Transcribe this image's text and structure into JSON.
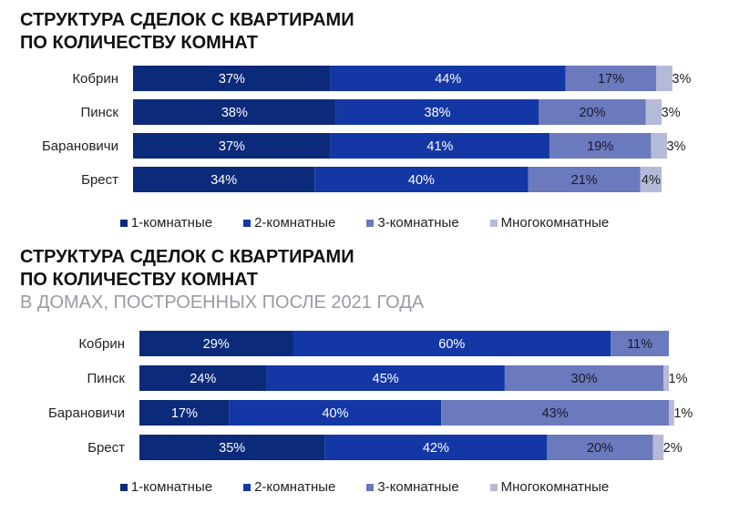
{
  "chart_data": [
    {
      "type": "bar",
      "orientation": "horizontal",
      "stacked": true,
      "title": [
        "СТРУКТУРА СДЕЛОК С КВАРТИРАМИ",
        "ПО КОЛИЧЕСТВУ КОМНАТ"
      ],
      "subtitle": "",
      "categories": [
        "Кобрин",
        "Пинск",
        "Барановичи",
        "Брест"
      ],
      "series": [
        {
          "name": "1-комнатные",
          "values": [
            37,
            38,
            37,
            34
          ],
          "color": "#0b2a7a"
        },
        {
          "name": "2-комнатные",
          "values": [
            44,
            38,
            41,
            40
          ],
          "color": "#1437a6"
        },
        {
          "name": "3-комнатные",
          "values": [
            17,
            20,
            19,
            21
          ],
          "color": "#6b79bd"
        },
        {
          "name": "Многокомнатные",
          "values": [
            3,
            3,
            3,
            4
          ],
          "color": "#b5bad8"
        }
      ],
      "xlim": [
        0,
        100
      ],
      "legend_position": "bottom"
    },
    {
      "type": "bar",
      "orientation": "horizontal",
      "stacked": true,
      "title": [
        "СТРУКТУРА СДЕЛОК С КВАРТИРАМИ",
        "ПО КОЛИЧЕСТВУ КОМНАТ"
      ],
      "subtitle": "В ДОМАХ, ПОСТРОЕННЫХ ПОСЛЕ 2021 ГОДА",
      "categories": [
        "Кобрин",
        "Пинск",
        "Барановичи",
        "Брест"
      ],
      "series": [
        {
          "name": "1-комнатные",
          "values": [
            29,
            24,
            17,
            35
          ],
          "color": "#0b2a7a"
        },
        {
          "name": "2-комнатные",
          "values": [
            60,
            45,
            40,
            42
          ],
          "color": "#1437a6"
        },
        {
          "name": "3-комнатные",
          "values": [
            11,
            30,
            43,
            20
          ],
          "color": "#6b79bd"
        },
        {
          "name": "Многокомнатные",
          "values": [
            0,
            1,
            1,
            2
          ],
          "color": "#b5bad8"
        }
      ],
      "xlim": [
        0,
        100
      ],
      "legend_position": "bottom"
    }
  ]
}
